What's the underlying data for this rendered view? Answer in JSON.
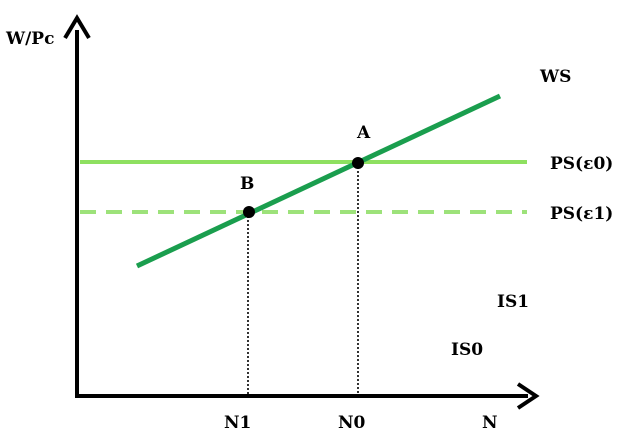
{
  "diagram": {
    "y_axis_label": "W/Pc",
    "x_axis_label": "N",
    "curves": {
      "ws": "WS",
      "ps_e0": "PS(ε0)",
      "ps_e1": "PS(ε1)",
      "is1": "IS1",
      "is0": "IS0"
    },
    "points": {
      "a": "A",
      "b": "B"
    },
    "x_ticks": {
      "n1": "N1",
      "n0": "N0"
    },
    "colors": {
      "ws_line": "#1a9e4e",
      "ps_e0_line": "#8ee060",
      "ps_e1_line": "#9de27a",
      "axis": "#000000"
    }
  }
}
